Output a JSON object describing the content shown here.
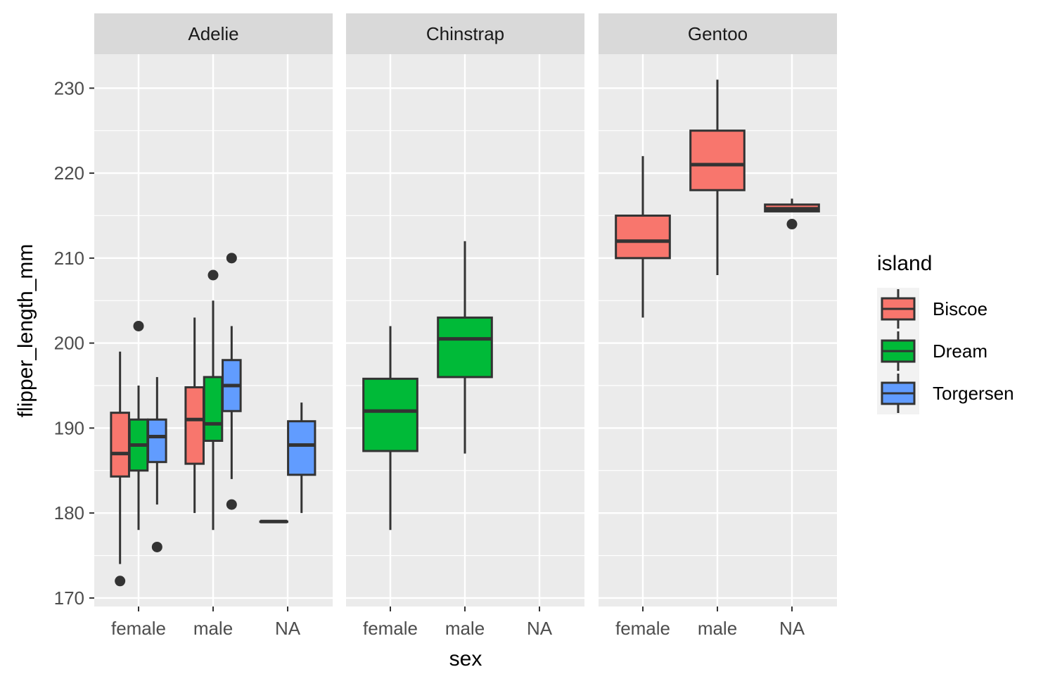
{
  "chart_data": {
    "type": "boxplot",
    "xlabel": "sex",
    "ylabel": "flipper_length_mm",
    "ylim": [
      169,
      234
    ],
    "yticks": [
      170,
      180,
      190,
      200,
      210,
      220,
      230
    ],
    "categories": [
      "female",
      "male",
      "NA"
    ],
    "legend": {
      "title": "island",
      "position": "right",
      "entries": [
        {
          "name": "Biscoe",
          "color": "#F8766D"
        },
        {
          "name": "Dream",
          "color": "#00BA38"
        },
        {
          "name": "Torgersen",
          "color": "#619CFF"
        }
      ]
    },
    "grid": true,
    "panels": [
      {
        "title": "Adelie",
        "boxes": [
          {
            "sex": "female",
            "island": "Biscoe",
            "slot": 0,
            "nslots": 3,
            "min": 174,
            "q1": 184.3,
            "median": 187,
            "q3": 191.8,
            "max": 199,
            "outliers": [
              172
            ]
          },
          {
            "sex": "female",
            "island": "Dream",
            "slot": 1,
            "nslots": 3,
            "min": 178,
            "q1": 185,
            "median": 188,
            "q3": 191,
            "max": 195,
            "outliers": [
              202
            ]
          },
          {
            "sex": "female",
            "island": "Torgersen",
            "slot": 2,
            "nslots": 3,
            "min": 181,
            "q1": 186,
            "median": 189,
            "q3": 191,
            "max": 196,
            "outliers": [
              176
            ]
          },
          {
            "sex": "male",
            "island": "Biscoe",
            "slot": 0,
            "nslots": 3,
            "min": 180,
            "q1": 185.8,
            "median": 191,
            "q3": 194.8,
            "max": 203,
            "outliers": []
          },
          {
            "sex": "male",
            "island": "Dream",
            "slot": 1,
            "nslots": 3,
            "min": 178,
            "q1": 188.5,
            "median": 190.5,
            "q3": 196,
            "max": 205,
            "outliers": [
              208
            ]
          },
          {
            "sex": "male",
            "island": "Torgersen",
            "slot": 2,
            "nslots": 3,
            "min": 184,
            "q1": 192,
            "median": 195,
            "q3": 198,
            "max": 202,
            "outliers": [
              210,
              181
            ]
          },
          {
            "sex": "NA",
            "island": "Dream",
            "slot": 0,
            "nslots": 2,
            "min": 179,
            "q1": 179,
            "median": 179,
            "q3": 179,
            "max": 179,
            "outliers": []
          },
          {
            "sex": "NA",
            "island": "Torgersen",
            "slot": 1,
            "nslots": 2,
            "min": 180,
            "q1": 184.5,
            "median": 188,
            "q3": 190.8,
            "max": 193,
            "outliers": []
          }
        ]
      },
      {
        "title": "Chinstrap",
        "boxes": [
          {
            "sex": "female",
            "island": "Dream",
            "slot": 0,
            "nslots": 1,
            "min": 178,
            "q1": 187.3,
            "median": 192,
            "q3": 195.8,
            "max": 202,
            "outliers": []
          },
          {
            "sex": "male",
            "island": "Dream",
            "slot": 0,
            "nslots": 1,
            "min": 187,
            "q1": 196,
            "median": 200.5,
            "q3": 203,
            "max": 212,
            "outliers": []
          }
        ]
      },
      {
        "title": "Gentoo",
        "boxes": [
          {
            "sex": "female",
            "island": "Biscoe",
            "slot": 0,
            "nslots": 1,
            "min": 203,
            "q1": 210,
            "median": 212,
            "q3": 215,
            "max": 222,
            "outliers": []
          },
          {
            "sex": "male",
            "island": "Biscoe",
            "slot": 0,
            "nslots": 1,
            "min": 208,
            "q1": 218,
            "median": 221,
            "q3": 225,
            "max": 231,
            "outliers": []
          },
          {
            "sex": "NA",
            "island": "Biscoe",
            "slot": 0,
            "nslots": 1,
            "min": 215.5,
            "q1": 215.5,
            "median": 215.8,
            "q3": 216.3,
            "max": 217,
            "outliers": [
              214
            ]
          }
        ]
      }
    ]
  }
}
